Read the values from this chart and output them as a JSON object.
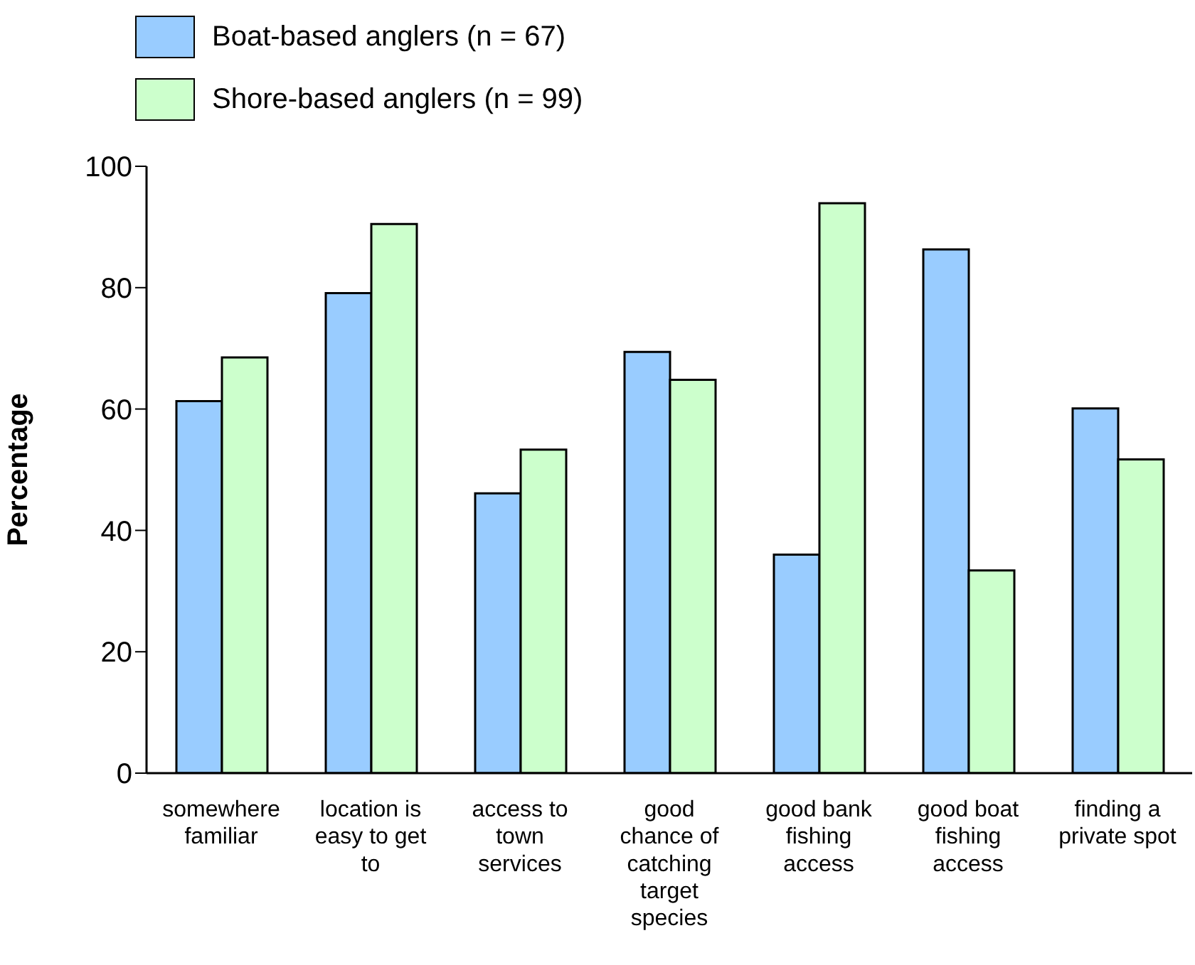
{
  "chart_data": {
    "type": "bar",
    "ylabel": "Percentage",
    "categories": [
      "somewhere familiar",
      "location is easy to get to",
      "access to town services",
      "good chance of catching target species",
      "good bank fishing access",
      "good boat fishing access",
      "finding a private spot"
    ],
    "series": [
      {
        "name": "Boat-based anglers (n = 67)",
        "color": "#99ccff",
        "values": [
          61.3,
          79.1,
          46.1,
          69.4,
          36.0,
          86.3,
          60.1
        ]
      },
      {
        "name": "Shore-based anglers (n = 99)",
        "color": "#ccffcc",
        "values": [
          68.5,
          90.5,
          53.3,
          64.8,
          93.9,
          33.4,
          51.7
        ]
      }
    ],
    "ylim": [
      0,
      100
    ],
    "yticks": [
      0,
      20,
      40,
      60,
      80,
      100
    ],
    "grid": false,
    "legend": "top left"
  }
}
